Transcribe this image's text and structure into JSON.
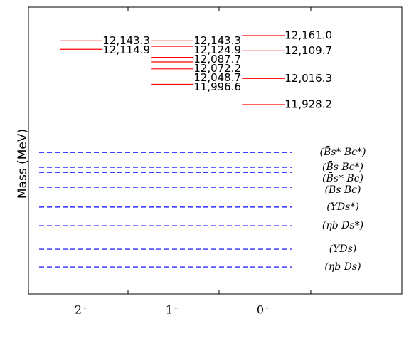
{
  "chart_data": {
    "type": "level",
    "y_label": "Mass (MeV)",
    "categories": [
      "2⁺",
      "1⁺",
      "0⁺"
    ],
    "values": [
      [
        12143.3,
        12114.9
      ],
      [
        12143.3,
        12124.9,
        12087.7,
        12072.2,
        12048.7,
        11996.6
      ],
      [
        12161.0,
        12109.7,
        12016.3,
        11928.2
      ]
    ],
    "value_labels": [
      [
        "12,143.3",
        "12,114.9"
      ],
      [
        "12,143.3",
        "12,124.9",
        "12,087.7",
        "12,072.2",
        "12,048.7",
        "11,996.6"
      ],
      [
        "12,161.0",
        "12,109.7",
        "12,016.3",
        "11,928.2"
      ]
    ],
    "color": "#ff0000",
    "thresholds": {
      "values": [
        11767,
        11717,
        11700,
        11650,
        11583,
        11520,
        11441,
        11381
      ],
      "labels": [
        "(B̄s* Bc*)",
        "(B̄s Bc*)",
        "(B̄s* Bc)",
        "(B̄s Bc)",
        "(ΥDs*)",
        "(ηb Ds*)",
        "(ΥDs)",
        "(ηb Ds)"
      ],
      "color": "#0000ff"
    },
    "ylim": [
      11290,
      12257
    ]
  }
}
